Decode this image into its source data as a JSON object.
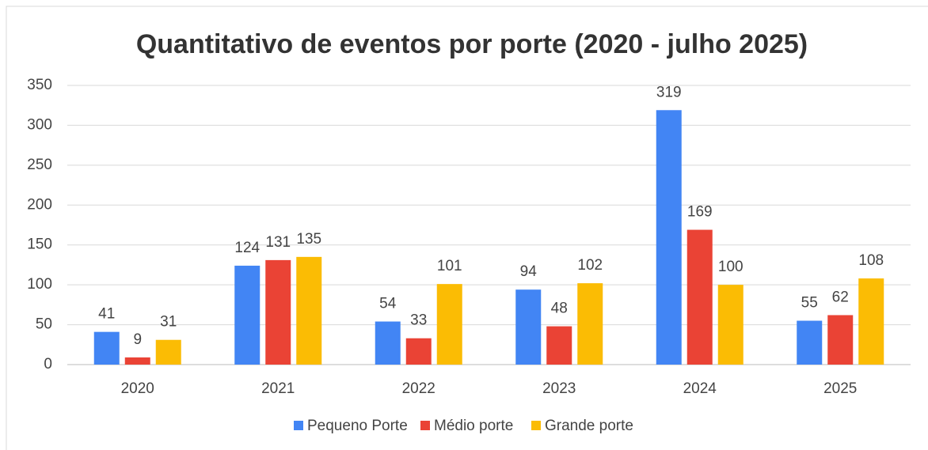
{
  "chart_data": {
    "type": "bar",
    "title": "Quantitativo de eventos por porte (2020 - julho 2025)",
    "categories": [
      "2020",
      "2021",
      "2022",
      "2023",
      "2024",
      "2025"
    ],
    "series": [
      {
        "name": "Pequeno Porte",
        "color": "#4285f4",
        "values": [
          41,
          124,
          54,
          94,
          319,
          55
        ]
      },
      {
        "name": "Médio porte",
        "color": "#ea4335",
        "values": [
          9,
          131,
          33,
          48,
          169,
          62
        ]
      },
      {
        "name": "Grande porte",
        "color": "#fbbc04",
        "values": [
          31,
          135,
          101,
          102,
          100,
          108
        ]
      }
    ],
    "ylim": [
      0,
      350
    ],
    "yticks": [
      0,
      50,
      100,
      150,
      200,
      250,
      300,
      350
    ],
    "grid": true,
    "legend": "bottom"
  }
}
